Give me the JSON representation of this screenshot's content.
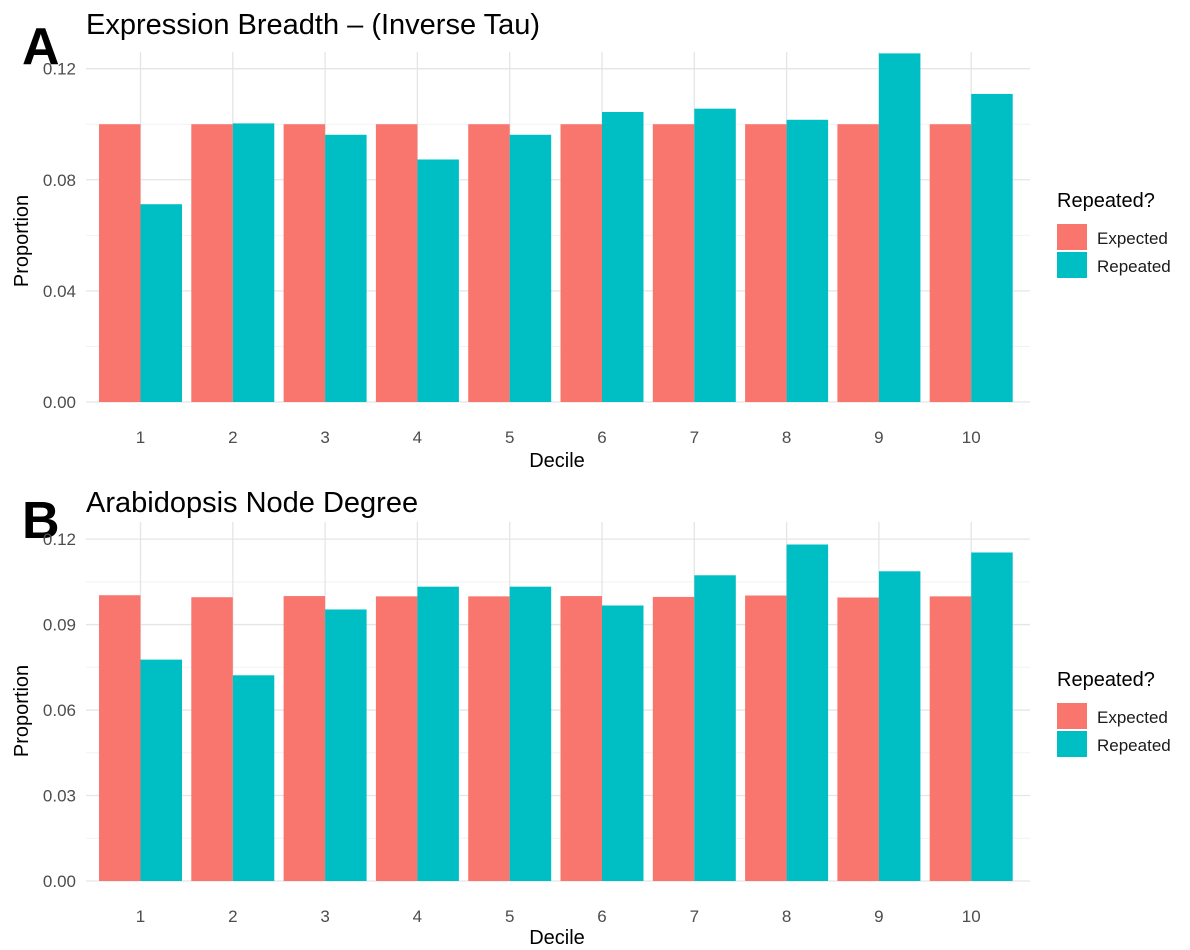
{
  "chart_data": [
    {
      "panel": "A",
      "type": "bar",
      "title": "Expression Breadth – (Inverse Tau)",
      "xlabel": "Decile",
      "ylabel": "Proportion",
      "categories": [
        "1",
        "2",
        "3",
        "4",
        "5",
        "6",
        "7",
        "8",
        "9",
        "10"
      ],
      "series": [
        {
          "name": "Expected",
          "color": "#F8766D",
          "values": [
            0.1,
            0.1,
            0.1,
            0.1,
            0.1,
            0.1,
            0.1,
            0.1,
            0.1,
            0.1
          ]
        },
        {
          "name": "Repeated",
          "color": "#00BFC4",
          "values": [
            0.0712,
            0.1003,
            0.0962,
            0.0873,
            0.0962,
            0.1044,
            0.1056,
            0.1016,
            0.1255,
            0.1109
          ]
        }
      ],
      "ylim": [
        0,
        0.12
      ],
      "yticks": [
        "0.00",
        "0.04",
        "0.08",
        "0.12"
      ],
      "ytick_values": [
        0,
        0.04,
        0.08,
        0.12
      ],
      "legend": {
        "title": "Repeated?",
        "position": "right",
        "entries": [
          "Expected",
          "Repeated"
        ]
      },
      "grid": true
    },
    {
      "panel": "B",
      "type": "bar",
      "title": "Arabidopsis Node Degree",
      "xlabel": "Decile",
      "ylabel": "Proportion",
      "categories": [
        "1",
        "2",
        "3",
        "4",
        "5",
        "6",
        "7",
        "8",
        "9",
        "10"
      ],
      "series": [
        {
          "name": "Expected",
          "color": "#F8766D",
          "values": [
            0.1003,
            0.0996,
            0.1,
            0.0999,
            0.0999,
            0.1,
            0.0997,
            0.1002,
            0.0995,
            0.0999
          ]
        },
        {
          "name": "Repeated",
          "color": "#00BFC4",
          "values": [
            0.0777,
            0.0722,
            0.0953,
            0.1033,
            0.1033,
            0.0967,
            0.1073,
            0.1181,
            0.1087,
            0.1153
          ]
        }
      ],
      "ylim": [
        0,
        0.12
      ],
      "yticks": [
        "0.00",
        "0.03",
        "0.06",
        "0.09",
        "0.12"
      ],
      "ytick_values": [
        0,
        0.03,
        0.06,
        0.09,
        0.12
      ],
      "legend": {
        "title": "Repeated?",
        "position": "right",
        "entries": [
          "Expected",
          "Repeated"
        ]
      },
      "grid": true
    }
  ]
}
